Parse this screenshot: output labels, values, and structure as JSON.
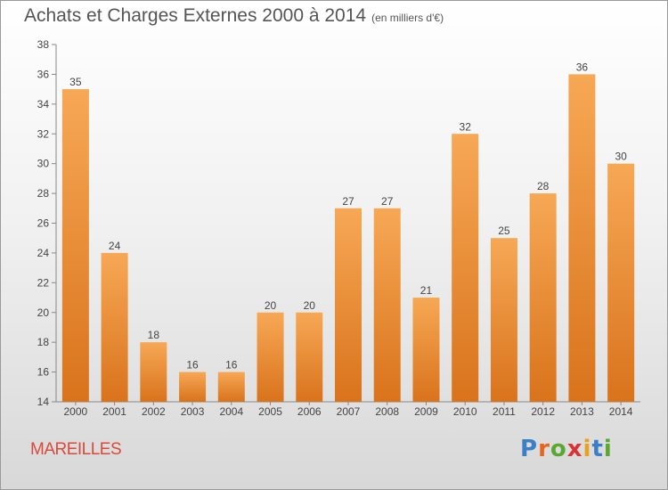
{
  "header": {
    "title": "Achats et Charges Externes 2000 à 2014",
    "subtitle": "(en milliers d'€)"
  },
  "footer": {
    "place": "MAREILLES",
    "logo": [
      "P",
      "r",
      "o",
      "x",
      "i",
      "t",
      "i"
    ],
    "logo_colors": [
      "#3b7fc6",
      "#e8641e",
      "#5aa832",
      "#d83232",
      "#e8a21e",
      "#3b7fc6",
      "#5aa832"
    ]
  },
  "chart_data": {
    "type": "bar",
    "title": "Achats et Charges Externes 2000 à 2014",
    "subtitle": "(en milliers d'€)",
    "categories": [
      "2000",
      "2001",
      "2002",
      "2003",
      "2004",
      "2005",
      "2006",
      "2007",
      "2008",
      "2009",
      "2010",
      "2011",
      "2012",
      "2013",
      "2014"
    ],
    "values": [
      35,
      24,
      18,
      16,
      16,
      20,
      20,
      27,
      27,
      21,
      32,
      25,
      28,
      36,
      30
    ],
    "ylim": [
      14,
      38
    ],
    "yticks": [
      14,
      16,
      18,
      20,
      22,
      24,
      26,
      28,
      30,
      32,
      34,
      36,
      38
    ],
    "grid": false,
    "bar_color_top": "#f7a855",
    "bar_color_bottom": "#d9731c"
  }
}
